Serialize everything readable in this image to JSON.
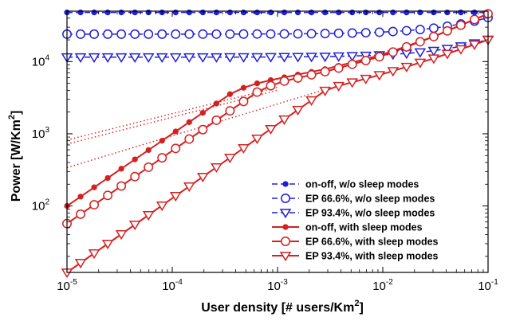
{
  "chart_data": {
    "type": "line",
    "xlabel": "User density [# users/Km",
    "xlabel_sup": "2",
    "xlabel_end": "]",
    "ylabel": "Power [W/Km",
    "ylabel_sup": "2",
    "ylabel_end": "]",
    "xscale": "log",
    "yscale": "log",
    "xlim": [
      1e-05,
      0.1
    ],
    "ylim": [
      12,
      50000
    ],
    "xticks": [
      {
        "value": 1e-05,
        "base": "10",
        "exp": "-5"
      },
      {
        "value": 0.0001,
        "base": "10",
        "exp": "-4"
      },
      {
        "value": 0.001,
        "base": "10",
        "exp": "-3"
      },
      {
        "value": 0.01,
        "base": "10",
        "exp": "-2"
      },
      {
        "value": 0.1,
        "base": "10",
        "exp": "-1"
      }
    ],
    "yticks": [
      {
        "value": 100,
        "base": "10",
        "exp": "2"
      },
      {
        "value": 1000,
        "base": "10",
        "exp": "3"
      },
      {
        "value": 10000,
        "base": "10",
        "exp": "4"
      }
    ],
    "grid": false,
    "legend_position": "bottom-right",
    "series": [
      {
        "name": "on-off, w/o sleep modes",
        "color": "#1f1fd6",
        "dash": "dashed",
        "marker": "dot",
        "kind": "flat",
        "value": 48000
      },
      {
        "name": "EP 66.6%, w/o sleep modes",
        "color": "#1f1fd6",
        "dash": "dashed",
        "marker": "circle",
        "kind": "linear",
        "base": 24000,
        "slope": 167000
      },
      {
        "name": "EP 93.4%, w/o sleep modes",
        "color": "#1f1fd6",
        "dash": "dashed",
        "marker": "triangle-down",
        "kind": "linear",
        "base": 11500,
        "slope": 87000
      },
      {
        "name": "on-off, with sleep modes",
        "color": "#d62020",
        "dash": "solid",
        "marker": "dot",
        "kind": "curve",
        "points": [
          [
            1e-05,
            100
          ],
          [
            0.0004,
            4000
          ],
          [
            0.0007,
            5200
          ],
          [
            0.001,
            5800
          ],
          [
            0.003,
            8000
          ],
          [
            0.01,
            12500
          ],
          [
            0.03,
            22000
          ],
          [
            0.1,
            46000
          ]
        ]
      },
      {
        "name": "EP 66.6%, with sleep modes",
        "color": "#d62020",
        "dash": "solid",
        "marker": "circle",
        "kind": "curve",
        "points": [
          [
            1e-05,
            57
          ],
          [
            0.00066,
            3900
          ],
          [
            0.001,
            5100
          ],
          [
            0.003,
            7400
          ],
          [
            0.01,
            12000
          ],
          [
            0.03,
            22000
          ],
          [
            0.1,
            46000
          ]
        ]
      },
      {
        "name": "EP 93.4%, with sleep modes",
        "color": "#d62020",
        "dash": "solid",
        "marker": "triangle-down",
        "kind": "curve",
        "points": [
          [
            1e-05,
            12
          ],
          [
            0.003,
            4200
          ],
          [
            0.01,
            6700
          ],
          [
            0.03,
            11000
          ],
          [
            0.1,
            20000
          ]
        ]
      }
    ],
    "dotted_lines": [
      {
        "color": "#d62020",
        "from": [
          1e-05,
          720
        ],
        "to": [
          0.001,
          4000
        ]
      },
      {
        "color": "#d62020",
        "from": [
          1e-05,
          820
        ],
        "to": [
          0.001,
          4400
        ]
      },
      {
        "color": "#d62020",
        "from": [
          1e-05,
          340
        ],
        "to": [
          0.003,
          4200
        ]
      }
    ]
  }
}
